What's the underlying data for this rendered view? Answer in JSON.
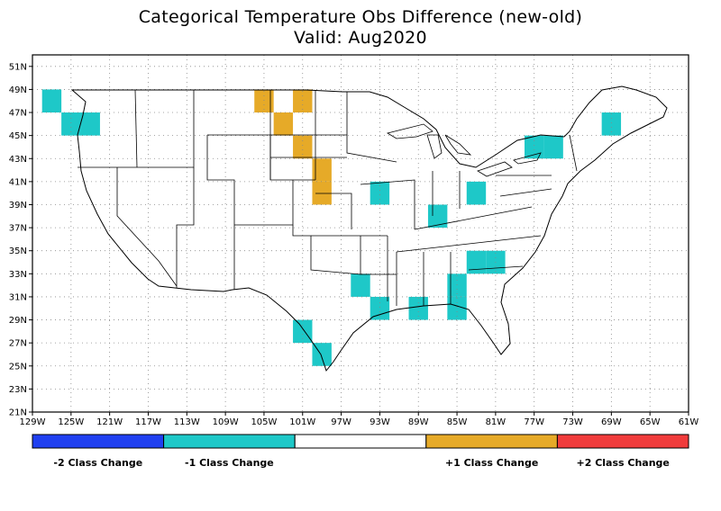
{
  "title": {
    "line1": "Categorical Temperature Obs Difference (new-old)",
    "line2": "Valid: Aug2020"
  },
  "map": {
    "lon_range": [
      -129,
      -61
    ],
    "lat_range": [
      21,
      52
    ],
    "lon_ticks": [
      "129W",
      "125W",
      "121W",
      "117W",
      "113W",
      "109W",
      "105W",
      "101W",
      "97W",
      "93W",
      "89W",
      "85W",
      "81W",
      "77W",
      "73W",
      "69W",
      "65W",
      "61W"
    ],
    "lat_ticks": [
      "21N",
      "23N",
      "25N",
      "27N",
      "29N",
      "31N",
      "33N",
      "35N",
      "37N",
      "39N",
      "41N",
      "43N",
      "45N",
      "47N",
      "49N",
      "51N"
    ],
    "colors": {
      "minus2": "#2040f0",
      "minus1": "#1ec8c8",
      "zero": "#ffffff",
      "plus1": "#e6aa28",
      "plus2": "#f03c3c"
    }
  },
  "cells": [
    {
      "lon": -127,
      "lat": 48,
      "cat": -1
    },
    {
      "lon": -125,
      "lat": 46,
      "cat": -1
    },
    {
      "lon": -123,
      "lat": 46,
      "cat": -1
    },
    {
      "lon": -105,
      "lat": 48,
      "cat": 1
    },
    {
      "lon": -101,
      "lat": 48,
      "cat": 1
    },
    {
      "lon": -103,
      "lat": 46,
      "cat": 1
    },
    {
      "lon": -101,
      "lat": 44,
      "cat": 1
    },
    {
      "lon": -99,
      "lat": 42,
      "cat": 1
    },
    {
      "lon": -99,
      "lat": 40,
      "cat": 1
    },
    {
      "lon": -93,
      "lat": 40,
      "cat": -1
    },
    {
      "lon": -87,
      "lat": 38,
      "cat": -1
    },
    {
      "lon": -83,
      "lat": 40,
      "cat": -1
    },
    {
      "lon": -77,
      "lat": 44,
      "cat": -1
    },
    {
      "lon": -75,
      "lat": 44,
      "cat": -1
    },
    {
      "lon": -69,
      "lat": 46,
      "cat": -1
    },
    {
      "lon": -81,
      "lat": 34,
      "cat": -1
    },
    {
      "lon": -83,
      "lat": 34,
      "cat": -1
    },
    {
      "lon": -85,
      "lat": 32,
      "cat": -1
    },
    {
      "lon": -85,
      "lat": 30,
      "cat": -1
    },
    {
      "lon": -89,
      "lat": 30,
      "cat": -1
    },
    {
      "lon": -95,
      "lat": 32,
      "cat": -1
    },
    {
      "lon": -93,
      "lat": 30,
      "cat": -1
    },
    {
      "lon": -101,
      "lat": 28,
      "cat": -1
    },
    {
      "lon": -99,
      "lat": 26,
      "cat": -1
    }
  ],
  "legend": {
    "labels": [
      {
        "text": "-2 Class Change",
        "col": 0
      },
      {
        "text": "-1 Class Change",
        "col": 1
      },
      {
        "text": "+1 Class Change",
        "col": 3
      },
      {
        "text": "+2 Class Change",
        "col": 4
      }
    ],
    "segments": [
      "minus2",
      "minus1",
      "zero",
      "plus1",
      "plus2"
    ]
  }
}
